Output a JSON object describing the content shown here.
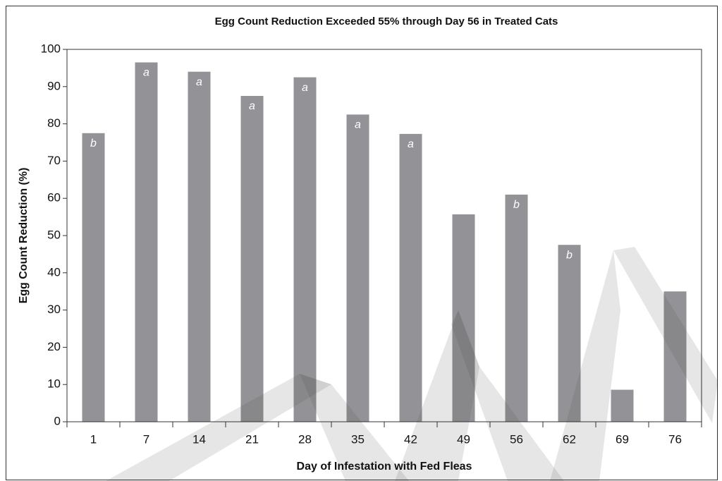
{
  "chart_data": {
    "type": "bar",
    "title": "Egg Count Reduction Exceeded 55% through Day 56 in Treated Cats",
    "x_label": "Day of Infestation with Fed Fleas",
    "y_label": "Egg Count Reduction (%)",
    "categories": [
      "1",
      "7",
      "14",
      "21",
      "28",
      "35",
      "42",
      "49",
      "56",
      "62",
      "69",
      "76"
    ],
    "values": [
      77.5,
      96.5,
      94,
      87.5,
      92.5,
      82.5,
      77.3,
      55.7,
      61,
      47.5,
      8.6,
      35
    ],
    "annotations": [
      "b",
      "a",
      "a",
      "a",
      "a",
      "a",
      "a",
      null,
      "b",
      "b",
      null,
      null
    ],
    "color": "#939397",
    "ylim": [
      0,
      100
    ],
    "yticks": [
      0,
      10,
      20,
      30,
      40,
      50,
      60,
      70,
      80,
      90,
      100
    ],
    "grid": false
  }
}
